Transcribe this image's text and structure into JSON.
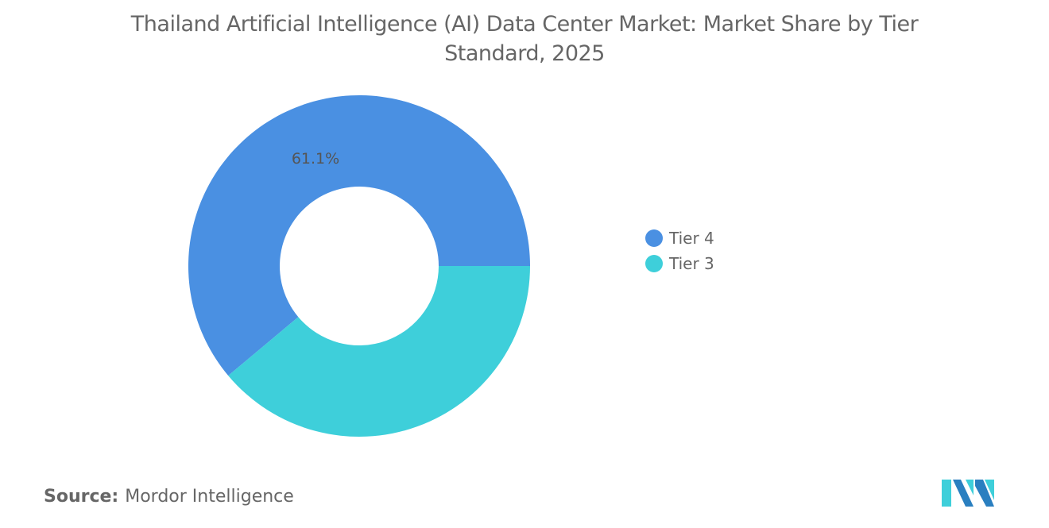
{
  "chart_data": {
    "type": "pie",
    "title": "Thailand Artificial Intelligence (AI) Data Center Market: Market Share by Tier Standard, 2025",
    "donut": true,
    "categories": [
      "Tier 4",
      "Tier 3"
    ],
    "values": [
      61.1,
      38.9
    ],
    "data_labels": [
      "61.1%",
      ""
    ],
    "colors": [
      "#4A90E2",
      "#3ECFDA"
    ],
    "legend_position": "right"
  },
  "source": {
    "label": "Source:",
    "value": "Mordor Intelligence"
  },
  "logo": {
    "text": "Mordor Intelligence"
  }
}
